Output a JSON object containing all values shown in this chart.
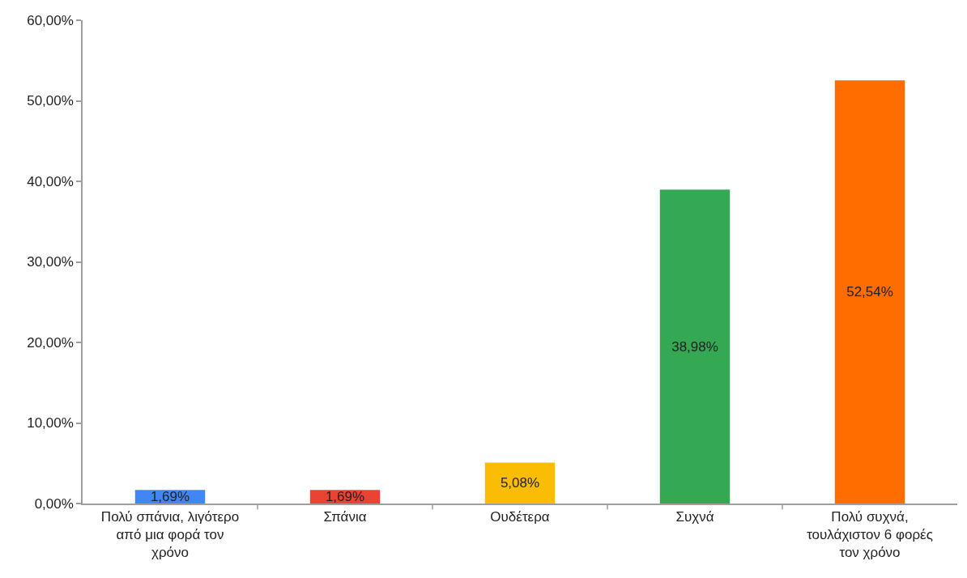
{
  "chart_data": {
    "type": "bar",
    "categories": [
      "Πολύ σπάνια, λιγότερο από μια φορά τον χρόνο",
      "Σπάνια",
      "Ουδέτερα",
      "Συχνά",
      "Πολύ συχνά, τουλάχιστον 6 φορές τον χρόνο"
    ],
    "values": [
      1.69,
      1.69,
      5.08,
      38.98,
      52.54
    ],
    "colors": [
      "#4285f4",
      "#ea4335",
      "#fbbc04",
      "#34a853",
      "#ff6d01"
    ],
    "value_labels": [
      "1,69%",
      "1,69%",
      "5,08%",
      "38,98%",
      "52,54%"
    ],
    "ylim": [
      0,
      60
    ],
    "yticks": [
      {
        "value": 0,
        "label": "0,00%"
      },
      {
        "value": 10,
        "label": "10,00%"
      },
      {
        "value": 20,
        "label": "20,00%"
      },
      {
        "value": 30,
        "label": "30,00%"
      },
      {
        "value": 40,
        "label": "40,00%"
      },
      {
        "value": 50,
        "label": "50,00%"
      },
      {
        "value": 60,
        "label": "60,00%"
      }
    ]
  }
}
